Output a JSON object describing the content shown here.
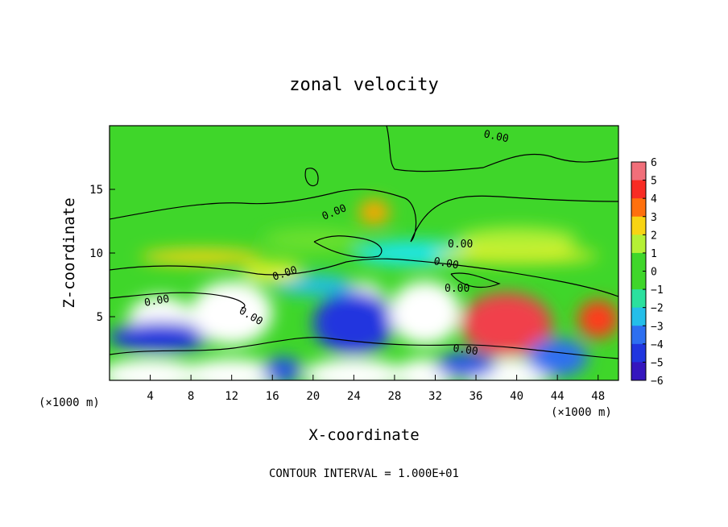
{
  "chart_data": {
    "type": "heatmap",
    "title": "zonal velocity",
    "xlabel": "X-coordinate",
    "ylabel": "Z-coordinate",
    "x_units_left": "(×1000 m)",
    "x_units_right": "(×1000 m)",
    "x_range": [
      0,
      50
    ],
    "y_range": [
      0,
      20
    ],
    "x_ticks": [
      4,
      8,
      12,
      16,
      20,
      24,
      28,
      32,
      36,
      40,
      44,
      48
    ],
    "y_ticks": [
      5,
      10,
      15
    ],
    "colorbar": {
      "ticks": [
        6,
        5,
        4,
        3,
        2,
        1,
        0,
        -1,
        -2,
        -3,
        -4,
        -5,
        -6
      ],
      "range": [
        -6,
        6
      ]
    },
    "contour_labels": [
      "0.00",
      "0.00",
      "0.00",
      "0.00",
      "0.00",
      "0.00",
      "0.00",
      "0.00"
    ],
    "footer": "CONTOUR INTERVAL = 1.000E+01",
    "cells": [
      {
        "x": 5,
        "z": 4.8,
        "v": 6.5,
        "rx": 3.2,
        "rz": 1.8
      },
      {
        "x": 5,
        "z": 3.4,
        "v": -4.5,
        "rx": 5,
        "rz": 1.2
      },
      {
        "x": 12,
        "z": 5.3,
        "v": 6.5,
        "rx": 4,
        "rz": 2.5
      },
      {
        "x": 25,
        "z": 5.2,
        "v": 6.5,
        "rx": 2.5,
        "rz": 2.5
      },
      {
        "x": 24,
        "z": 4.5,
        "v": -4.5,
        "rx": 4,
        "rz": 2.5
      },
      {
        "x": 31,
        "z": 5.3,
        "v": 6.5,
        "rx": 3.5,
        "rz": 2.5
      },
      {
        "x": 39,
        "z": 4.4,
        "v": 5.2,
        "rx": 4.5,
        "rz": 2.5
      },
      {
        "x": 48,
        "z": 4.8,
        "v": 4,
        "rx": 2,
        "rz": 1.5
      },
      {
        "x": 4,
        "z": 0.4,
        "v": 6.5,
        "rx": 5,
        "rz": 1.3
      },
      {
        "x": 12,
        "z": 0.4,
        "v": 6.5,
        "rx": 5,
        "rz": 1.3
      },
      {
        "x": 24,
        "z": 0.4,
        "v": 6.5,
        "rx": 5,
        "rz": 1.3
      },
      {
        "x": 31,
        "z": 0.4,
        "v": 6.5,
        "rx": 3,
        "rz": 1.3
      },
      {
        "x": 39,
        "z": 0.4,
        "v": 6.5,
        "rx": 4.5,
        "rz": 1.3
      },
      {
        "x": 17,
        "z": 0.8,
        "v": -4,
        "rx": 2,
        "rz": 1
      },
      {
        "x": 35,
        "z": 1.2,
        "v": -4,
        "rx": 3,
        "rz": 1
      },
      {
        "x": 44,
        "z": 1.8,
        "v": -3.5,
        "rx": 3,
        "rz": 1.5
      },
      {
        "x": 20,
        "z": 7.5,
        "v": -2.5,
        "rx": 4,
        "rz": 0.8
      },
      {
        "x": 30,
        "z": 10,
        "v": -2,
        "rx": 6,
        "rz": 1
      },
      {
        "x": 9,
        "z": 9.7,
        "v": 2.5,
        "rx": 6,
        "rz": 0.6
      },
      {
        "x": 40,
        "z": 9.8,
        "v": 2,
        "rx": 8,
        "rz": 0.6
      },
      {
        "x": 26,
        "z": 13.2,
        "v": 3,
        "rx": 1.5,
        "rz": 1
      },
      {
        "x": 16,
        "z": 8.5,
        "v": 2,
        "rx": 3,
        "rz": 0.8
      },
      {
        "x": 40,
        "z": 11,
        "v": 1.5,
        "rx": 6,
        "rz": 1
      },
      {
        "x": 20,
        "z": 11,
        "v": 1,
        "rx": 5,
        "rz": 1
      }
    ]
  }
}
